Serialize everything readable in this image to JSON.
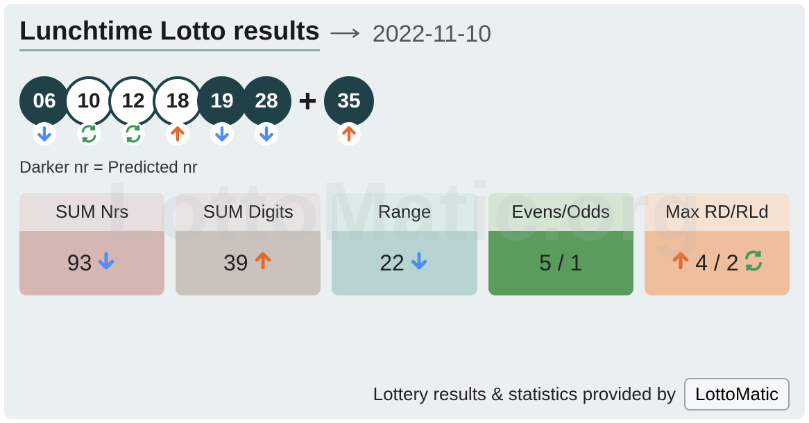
{
  "title": "Lunchtime Lotto results",
  "date": "2022-11-10",
  "legend": "Darker nr = Predicted nr",
  "watermark": "LottoMatic.org",
  "colors": {
    "panel_bg": "#eaf0f1",
    "ball_dark_bg": "#1f4147",
    "ball_dark_text": "#ffffff",
    "ball_light_bg": "#ffffff",
    "ball_light_text": "#1a1a1a",
    "ball_border": "#1f4147",
    "arrow_down": "#4f8ef0",
    "arrow_up": "#e46a2a",
    "repeat": "#3e9a55",
    "title_underline": "#8fa7ac"
  },
  "balls": [
    {
      "n": "06",
      "predicted": true,
      "indicator": "down"
    },
    {
      "n": "10",
      "predicted": false,
      "indicator": "repeat"
    },
    {
      "n": "12",
      "predicted": false,
      "indicator": "repeat"
    },
    {
      "n": "18",
      "predicted": false,
      "indicator": "up"
    },
    {
      "n": "19",
      "predicted": true,
      "indicator": "down"
    },
    {
      "n": "28",
      "predicted": true,
      "indicator": "down"
    }
  ],
  "bonus": {
    "n": "35",
    "predicted": true,
    "indicator": "up"
  },
  "plus": "+",
  "stats": [
    {
      "label": "SUM Nrs",
      "value": "93",
      "indicators": [
        "down"
      ],
      "head_bg": "#e7dfdd",
      "body_bg": "#d4b7b3"
    },
    {
      "label": "SUM Digits",
      "value": "39",
      "indicators": [
        "up"
      ],
      "head_bg": "#e7e3e1",
      "body_bg": "#ccc2bd"
    },
    {
      "label": "Range",
      "value": "22",
      "indicators": [
        "down"
      ],
      "head_bg": "#dbeaea",
      "body_bg": "#b7d3d2"
    },
    {
      "label": "Evens/Odds",
      "value": "5 / 1",
      "indicators": [],
      "head_bg": "#d5e5d3",
      "body_bg": "#5a9c5c"
    },
    {
      "label": "Max RD/RLd",
      "value": "4 / 2",
      "indicators": [
        "up",
        "repeat"
      ],
      "head_bg": "#f6e2d3",
      "body_bg": "#efbe9c"
    }
  ],
  "footer_text": "Lottery results & statistics provided by",
  "brand": "LottoMatic"
}
